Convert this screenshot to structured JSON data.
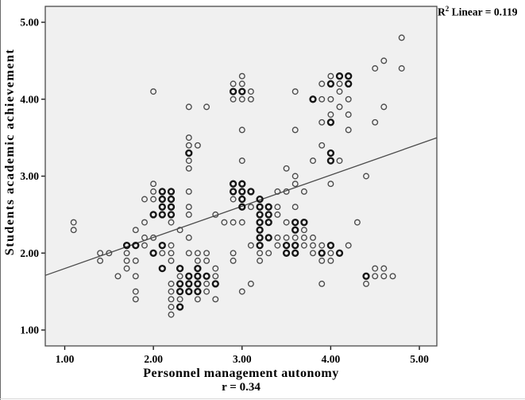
{
  "figure": {
    "r2_base": "R",
    "r2_exp": "2",
    "r2_rest": " Linear = 0.119"
  },
  "chart_data": {
    "type": "scatter",
    "title": "",
    "xlabel": "Personnel management autonomy",
    "ylabel": "Students academic achievement",
    "annotation": "R² Linear = 0.119",
    "correlation_label": "r = 0.34",
    "x_axis": {
      "tick_values": [
        1,
        2,
        3,
        4,
        5
      ],
      "tick_labels": [
        "1.00",
        "2.00",
        "3.00",
        "4.00",
        "5.00"
      ],
      "range": [
        0.78,
        5.2
      ]
    },
    "y_axis": {
      "tick_values": [
        1,
        2,
        3,
        4,
        5
      ],
      "tick_labels": [
        "1.00",
        "2.00",
        "3.00",
        "4.00",
        "5.00"
      ],
      "range": [
        0.79,
        5.21
      ]
    },
    "grid": false,
    "plot_background": "#f0f0f0",
    "marker": {
      "shape": "open-circle",
      "color": "#4a4a4a",
      "overlap_color": "#161616"
    },
    "regression_line": {
      "x1": 0.78,
      "y1": 1.71,
      "x2": 5.2,
      "y2": 3.5,
      "slope": 0.4,
      "intercept": 1.4,
      "r": 0.34,
      "r_squared": 0.119
    },
    "points": [
      [
        2.0,
        4.1,
        0
      ],
      [
        3.0,
        4.3,
        0
      ],
      [
        2.9,
        4.2,
        0
      ],
      [
        3.0,
        4.2,
        0
      ],
      [
        2.9,
        4.1,
        1
      ],
      [
        3.0,
        4.1,
        1
      ],
      [
        3.1,
        4.1,
        0
      ],
      [
        2.9,
        4.0,
        0
      ],
      [
        3.0,
        4.0,
        0
      ],
      [
        3.1,
        4.0,
        0
      ],
      [
        2.4,
        3.9,
        0
      ],
      [
        2.6,
        3.9,
        0
      ],
      [
        4.8,
        4.8,
        0
      ],
      [
        4.6,
        4.5,
        0
      ],
      [
        4.5,
        4.4,
        0
      ],
      [
        4.8,
        4.4,
        0
      ],
      [
        4.0,
        4.3,
        0
      ],
      [
        4.1,
        4.3,
        1
      ],
      [
        4.2,
        4.3,
        1
      ],
      [
        3.9,
        4.2,
        0
      ],
      [
        4.0,
        4.2,
        1
      ],
      [
        4.1,
        4.2,
        0
      ],
      [
        4.2,
        4.2,
        1
      ],
      [
        3.6,
        4.1,
        0
      ],
      [
        4.1,
        4.1,
        0
      ],
      [
        3.8,
        4.0,
        1
      ],
      [
        3.9,
        4.0,
        0
      ],
      [
        4.0,
        4.0,
        0
      ],
      [
        4.2,
        4.0,
        0
      ],
      [
        4.1,
        3.9,
        0
      ],
      [
        4.6,
        3.9,
        0
      ],
      [
        4.0,
        3.8,
        0
      ],
      [
        4.2,
        3.8,
        0
      ],
      [
        3.9,
        3.7,
        0
      ],
      [
        4.0,
        3.7,
        1
      ],
      [
        4.5,
        3.7,
        0
      ],
      [
        3.0,
        3.6,
        0
      ],
      [
        3.6,
        3.6,
        0
      ],
      [
        4.2,
        3.6,
        0
      ],
      [
        2.4,
        3.5,
        0
      ],
      [
        2.4,
        3.4,
        0
      ],
      [
        2.5,
        3.4,
        0
      ],
      [
        3.9,
        3.4,
        0
      ],
      [
        2.4,
        3.3,
        1
      ],
      [
        4.0,
        3.3,
        1
      ],
      [
        2.4,
        3.2,
        0
      ],
      [
        3.0,
        3.2,
        0
      ],
      [
        3.8,
        3.2,
        0
      ],
      [
        4.0,
        3.2,
        1
      ],
      [
        4.1,
        3.2,
        0
      ],
      [
        2.4,
        3.1,
        0
      ],
      [
        3.5,
        3.1,
        0
      ],
      [
        3.6,
        3.0,
        0
      ],
      [
        4.4,
        3.0,
        0
      ],
      [
        2.0,
        2.9,
        0
      ],
      [
        2.9,
        2.9,
        1
      ],
      [
        3.0,
        2.9,
        1
      ],
      [
        3.6,
        2.9,
        0
      ],
      [
        4.0,
        2.9,
        0
      ],
      [
        2.0,
        2.8,
        0
      ],
      [
        2.1,
        2.8,
        1
      ],
      [
        2.2,
        2.8,
        1
      ],
      [
        2.4,
        2.8,
        0
      ],
      [
        2.9,
        2.8,
        1
      ],
      [
        3.0,
        2.8,
        1
      ],
      [
        3.1,
        2.8,
        1
      ],
      [
        3.4,
        2.8,
        0
      ],
      [
        3.5,
        2.8,
        0
      ],
      [
        3.7,
        2.8,
        0
      ],
      [
        1.9,
        2.7,
        0
      ],
      [
        2.0,
        2.7,
        0
      ],
      [
        2.1,
        2.7,
        1
      ],
      [
        2.2,
        2.7,
        1
      ],
      [
        2.9,
        2.7,
        0
      ],
      [
        3.0,
        2.7,
        1
      ],
      [
        3.2,
        2.7,
        1
      ],
      [
        2.1,
        2.6,
        1
      ],
      [
        2.2,
        2.6,
        1
      ],
      [
        2.4,
        2.6,
        0
      ],
      [
        3.0,
        2.6,
        1
      ],
      [
        3.1,
        2.6,
        0
      ],
      [
        3.2,
        2.6,
        1
      ],
      [
        3.3,
        2.6,
        1
      ],
      [
        3.4,
        2.6,
        0
      ],
      [
        3.6,
        2.6,
        0
      ],
      [
        2.0,
        2.5,
        1
      ],
      [
        2.1,
        2.5,
        1
      ],
      [
        2.2,
        2.5,
        1
      ],
      [
        2.4,
        2.5,
        0
      ],
      [
        2.7,
        2.5,
        0
      ],
      [
        3.2,
        2.5,
        1
      ],
      [
        3.3,
        2.5,
        1
      ],
      [
        3.4,
        2.5,
        0
      ],
      [
        1.1,
        2.4,
        0
      ],
      [
        1.9,
        2.4,
        0
      ],
      [
        2.2,
        2.4,
        0
      ],
      [
        2.8,
        2.4,
        0
      ],
      [
        2.9,
        2.4,
        0
      ],
      [
        3.0,
        2.4,
        0
      ],
      [
        3.2,
        2.4,
        1
      ],
      [
        3.3,
        2.4,
        1
      ],
      [
        3.5,
        2.4,
        0
      ],
      [
        3.6,
        2.4,
        1
      ],
      [
        3.7,
        2.4,
        1
      ],
      [
        4.3,
        2.4,
        0
      ],
      [
        1.1,
        2.3,
        0
      ],
      [
        1.8,
        2.3,
        0
      ],
      [
        2.3,
        2.3,
        0
      ],
      [
        3.2,
        2.3,
        1
      ],
      [
        3.6,
        2.3,
        1
      ],
      [
        3.7,
        2.3,
        0
      ],
      [
        1.9,
        2.2,
        0
      ],
      [
        2.0,
        2.2,
        0
      ],
      [
        2.4,
        2.2,
        0
      ],
      [
        3.2,
        2.2,
        1
      ],
      [
        3.3,
        2.2,
        1
      ],
      [
        3.4,
        2.2,
        0
      ],
      [
        3.5,
        2.2,
        0
      ],
      [
        3.6,
        2.2,
        0
      ],
      [
        3.7,
        2.2,
        0
      ],
      [
        3.8,
        2.2,
        0
      ],
      [
        1.7,
        2.1,
        1
      ],
      [
        1.8,
        2.1,
        1
      ],
      [
        1.9,
        2.1,
        0
      ],
      [
        2.1,
        2.1,
        1
      ],
      [
        2.2,
        2.1,
        0
      ],
      [
        3.1,
        2.1,
        0
      ],
      [
        3.2,
        2.1,
        1
      ],
      [
        3.4,
        2.1,
        0
      ],
      [
        3.5,
        2.1,
        1
      ],
      [
        3.6,
        2.1,
        1
      ],
      [
        3.7,
        2.1,
        0
      ],
      [
        3.8,
        2.1,
        0
      ],
      [
        3.9,
        2.1,
        0
      ],
      [
        4.0,
        2.1,
        1
      ],
      [
        4.2,
        2.1,
        0
      ],
      [
        1.4,
        2.0,
        0
      ],
      [
        1.5,
        2.0,
        0
      ],
      [
        1.7,
        2.0,
        0
      ],
      [
        2.0,
        2.0,
        1
      ],
      [
        2.1,
        2.0,
        0
      ],
      [
        2.2,
        2.0,
        0
      ],
      [
        2.4,
        2.0,
        0
      ],
      [
        2.5,
        2.0,
        0
      ],
      [
        2.6,
        2.0,
        0
      ],
      [
        2.9,
        2.0,
        0
      ],
      [
        3.2,
        2.0,
        0
      ],
      [
        3.3,
        2.0,
        0
      ],
      [
        3.5,
        2.0,
        1
      ],
      [
        3.6,
        2.0,
        1
      ],
      [
        3.8,
        2.0,
        0
      ],
      [
        3.9,
        2.0,
        1
      ],
      [
        4.0,
        2.0,
        0
      ],
      [
        4.1,
        2.0,
        1
      ],
      [
        1.4,
        1.9,
        0
      ],
      [
        1.7,
        1.9,
        0
      ],
      [
        1.8,
        1.9,
        0
      ],
      [
        2.2,
        1.9,
        0
      ],
      [
        2.5,
        1.9,
        0
      ],
      [
        2.6,
        1.9,
        0
      ],
      [
        2.9,
        1.9,
        0
      ],
      [
        3.2,
        1.9,
        0
      ],
      [
        3.9,
        1.9,
        0
      ],
      [
        4.0,
        1.9,
        0
      ],
      [
        1.7,
        1.8,
        0
      ],
      [
        2.1,
        1.8,
        1
      ],
      [
        2.3,
        1.8,
        1
      ],
      [
        2.5,
        1.8,
        1
      ],
      [
        2.7,
        1.8,
        0
      ],
      [
        4.5,
        1.8,
        0
      ],
      [
        4.6,
        1.8,
        0
      ],
      [
        1.6,
        1.7,
        0
      ],
      [
        1.8,
        1.7,
        0
      ],
      [
        2.3,
        1.7,
        0
      ],
      [
        2.4,
        1.7,
        1
      ],
      [
        2.5,
        1.7,
        1
      ],
      [
        2.6,
        1.7,
        1
      ],
      [
        2.7,
        1.7,
        0
      ],
      [
        4.4,
        1.7,
        1
      ],
      [
        4.5,
        1.7,
        0
      ],
      [
        4.6,
        1.7,
        0
      ],
      [
        4.7,
        1.7,
        0
      ],
      [
        2.2,
        1.6,
        0
      ],
      [
        2.3,
        1.6,
        1
      ],
      [
        2.4,
        1.6,
        1
      ],
      [
        2.5,
        1.6,
        1
      ],
      [
        2.6,
        1.6,
        0
      ],
      [
        2.7,
        1.6,
        1
      ],
      [
        3.1,
        1.6,
        0
      ],
      [
        3.9,
        1.6,
        0
      ],
      [
        4.4,
        1.6,
        0
      ],
      [
        1.8,
        1.5,
        0
      ],
      [
        2.2,
        1.5,
        0
      ],
      [
        2.3,
        1.5,
        1
      ],
      [
        2.4,
        1.5,
        1
      ],
      [
        2.5,
        1.5,
        1
      ],
      [
        2.6,
        1.5,
        0
      ],
      [
        3.0,
        1.5,
        0
      ],
      [
        1.8,
        1.4,
        0
      ],
      [
        2.2,
        1.4,
        0
      ],
      [
        2.3,
        1.4,
        0
      ],
      [
        2.5,
        1.4,
        0
      ],
      [
        2.7,
        1.4,
        0
      ],
      [
        2.2,
        1.3,
        0
      ],
      [
        2.3,
        1.3,
        1
      ],
      [
        2.2,
        1.2,
        0
      ]
    ]
  }
}
